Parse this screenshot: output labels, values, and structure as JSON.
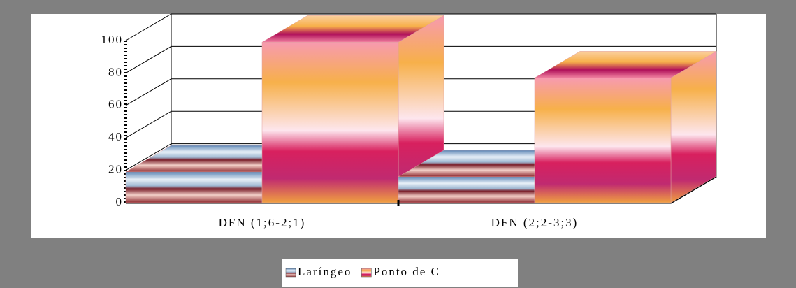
{
  "chart_data": {
    "type": "bar",
    "categories": [
      "DFN (1;6-2;1)",
      "DFN (2;2-3;3)"
    ],
    "series": [
      {
        "name": "Laríngeo",
        "color": "#7fa4c8",
        "values": [
          19,
          16
        ]
      },
      {
        "name": "Ponto de C",
        "color": "#f7b04a",
        "values": [
          99,
          77
        ]
      }
    ],
    "ylim": [
      0,
      100
    ],
    "yticks": [
      0,
      20,
      40,
      60,
      80,
      100
    ],
    "grid": true
  }
}
